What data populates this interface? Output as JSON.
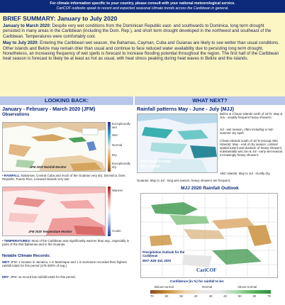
{
  "banner": {
    "line1": "For climate information specific to your country, please consult with your national meteorological service.",
    "line2": "CariCOF outlooks speak to recent and expected seasonal climate trends across the Caribbean in general."
  },
  "summary": {
    "title": "BRIEF SUMMARY: January to July 2020",
    "para1_lead": "January to March 2020:",
    "para1": "Despite very wet conditions from the Dominican Republic east- and southwards to Dominica, long term drought persisted in many areas in the Caribbean (including the Dom. Rep.), and short term drought developed in the northwest and southeast of the Caribbean. Temperatures were comfortably cool.",
    "para2_lead": "May to July 2020:",
    "para2": "Entering the Caribbean wet season, the Bahamas, Cayman, Cuba and Guianas are likely to see wetter than usual conditions. Other islands and Belize may remain drier than usual and continue to face reduced water availability due to persisting long term drought. Nonetheless, an increasing frequency of wet spells is forecast to increase flooding potential throughout the region. The first half of the Caribbean heat season is forecast to likely be at least as hot as usual, with heat stress peaking during heat waves in Belize and the islands."
  },
  "left": {
    "header": "LOOKING BACK:",
    "title": "January - February - March 2020 (JFM)",
    "subtitle": "Observations",
    "rain_map_caption": "JFM 2020 Rainfall Monitor",
    "rain_legend": [
      "Exceptionally wet",
      "Wet",
      "Normal",
      "Dry",
      "Exceptionally dry"
    ],
    "rainfall_lead": "RAINFALL:",
    "rainfall": "Bahamas, Central Cuba and much of the Guianas very dry; Dominica, Dom. Republic, Puerto Rico, Leeward Islands very wet.",
    "temp_map_caption": "JFM 2020 Temperature Monitor",
    "temp_legend": [
      "Warmer",
      "Cooler"
    ],
    "temp_lead": "TEMPERATURES:",
    "temp": "Most of the Caribbean was significantly warmer than avg., especially in parts of the NW Bahamas and in the Guianas.",
    "records_title": "Notable Climate Records:",
    "record1_lead": "WET:",
    "record1": "JFM: 1 location in Jamaica, 1 in Martinique and 1 in Suriname recorded their highest rainfall totals for this period (175-300% of avg.).",
    "record2_lead": "DRY:",
    "record2": "JFM: no record low rainfall totals for this period."
  },
  "right": {
    "header": "WHAT NEXT?",
    "title": "Rainfall patterns May - June - July (MJJ)",
    "notes": [
      "Belize & C'bean Islands north of 16°N: May & Jun - usually frequent heavy showers;",
      "Jul - wet season, often including a mid-summer dry spell.",
      "C'bean Islands south of 16°N (except ABC Islands): May - end of dry season. Limited spatial extent and duration of heavy showers; substantially wet Jun & Jul - early wet season. Increasingly heavy showers.",
      "ABC Islands: May to Jul - mostly dry."
    ],
    "map_caption_1": "Historical average",
    "map_caption_2": "MJJ rainfall",
    "guianas_note": "Guianas: May to Jul - long wet season; heavy showers are frequent.",
    "outlook_title": "MJJ 2020 Rainfall Outlook",
    "outlook_caption": "Precipitation Outlook for the Caribbean",
    "outlook_period": "MAY-JUN-JUL 2020",
    "caricof": "CariCOF",
    "confidence_label": "Confidence (in %) for rainfall to be:",
    "conf_cats": [
      "Below-normal",
      "Normal",
      "Above-normal"
    ],
    "conf_ticks": [
      "70",
      "60",
      "50",
      "40",
      "40",
      "40",
      "50",
      "60",
      "70"
    ],
    "colors": {
      "dry": "#c9913c",
      "wet": "#2d8f3d",
      "normal": "#e8e8e8",
      "header_bg": "#b9c6ea",
      "summary_bg": "#fbf6c4",
      "banner_bg": "#0d2a7a"
    }
  }
}
